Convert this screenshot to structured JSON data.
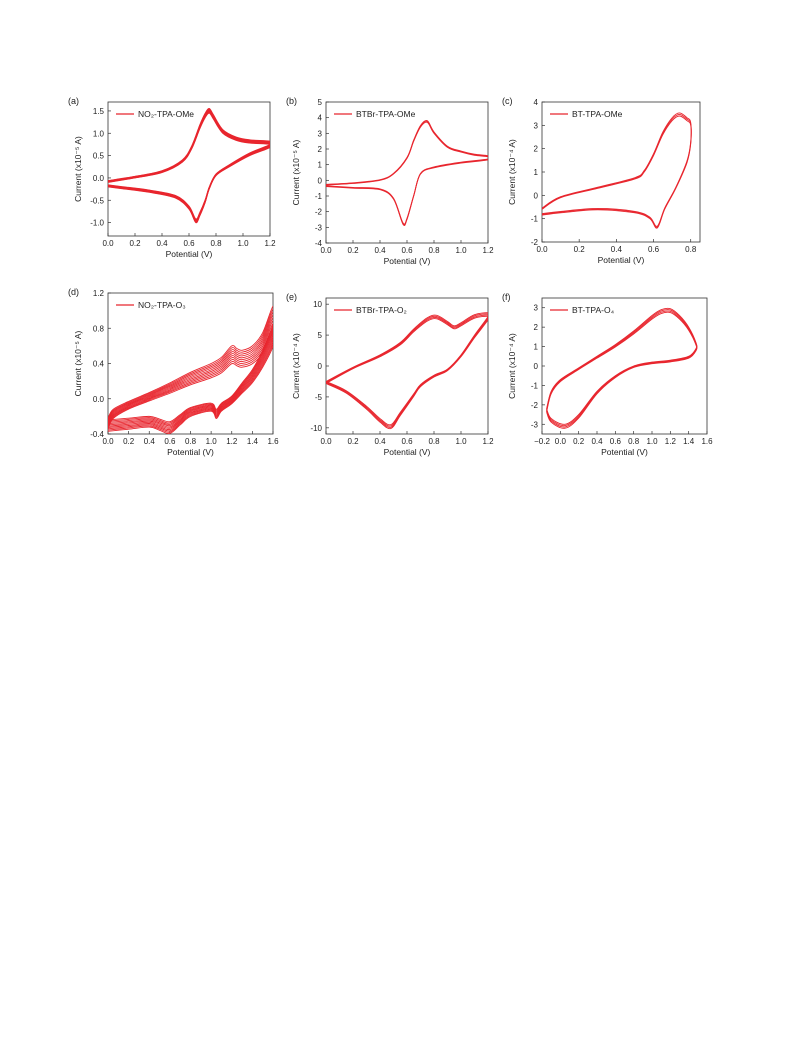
{
  "colors": {
    "curve": "#e8262e",
    "axis": "#333333"
  },
  "chart_data": [
    {
      "panel": "(a)",
      "type": "line",
      "legend": "NO₂-TPA-OMe",
      "xlabel": "Potential (V)",
      "ylabel": "Current (x10⁻⁵ A)",
      "xlim": [
        0.0,
        1.2
      ],
      "ylim": [
        -1.3,
        1.7
      ],
      "xticks": [
        "0.0",
        "0.2",
        "0.4",
        "0.6",
        "0.8",
        "1.0",
        "1.2"
      ],
      "yticks": [
        "-1.0",
        "-0.5",
        "0.0",
        "0.5",
        "1.0",
        "1.5"
      ],
      "xtick_values": [
        0,
        0.2,
        0.4,
        0.6,
        0.8,
        1.0,
        1.2
      ],
      "ytick_values": [
        -1.0,
        -0.5,
        0.0,
        0.5,
        1.0,
        1.5
      ],
      "cycles": 10,
      "cycle_offset": [
        0,
        0.008
      ],
      "series": [
        {
          "x": [
            0.0,
            0.2,
            0.4,
            0.55,
            0.62,
            0.68,
            0.72,
            0.75,
            0.78,
            0.85,
            0.95,
            1.05,
            1.2,
            1.2,
            1.05,
            0.9,
            0.8,
            0.75,
            0.72,
            0.68,
            0.65,
            0.6,
            0.5,
            0.3,
            0.1,
            0.0
          ],
          "y": [
            -0.1,
            0.0,
            0.12,
            0.35,
            0.65,
            1.1,
            1.35,
            1.45,
            1.32,
            1.0,
            0.84,
            0.78,
            0.75,
            0.68,
            0.5,
            0.25,
            0.05,
            -0.25,
            -0.55,
            -0.85,
            -1.0,
            -0.7,
            -0.45,
            -0.32,
            -0.24,
            -0.2
          ]
        }
      ]
    },
    {
      "panel": "(b)",
      "type": "line",
      "legend": "BTBr-TPA-OMe",
      "xlabel": "Potential (V)",
      "ylabel": "Current (x10⁻⁵ A)",
      "xlim": [
        0.0,
        1.2
      ],
      "ylim": [
        -4,
        5
      ],
      "xticks": [
        "0.0",
        "0.2",
        "0.4",
        "0.6",
        "0.8",
        "1.0",
        "1.2"
      ],
      "yticks": [
        "-4",
        "-3",
        "-2",
        "-1",
        "0",
        "1",
        "2",
        "3",
        "4",
        "5"
      ],
      "xtick_values": [
        0,
        0.2,
        0.4,
        0.6,
        0.8,
        1.0,
        1.2
      ],
      "ytick_values": [
        -4,
        -3,
        -2,
        -1,
        0,
        1,
        2,
        3,
        4,
        5
      ],
      "cycles": 3,
      "cycle_offset": [
        0,
        0.04
      ],
      "series": [
        {
          "x": [
            0.0,
            0.2,
            0.4,
            0.5,
            0.6,
            0.65,
            0.7,
            0.75,
            0.8,
            0.9,
            1.0,
            1.1,
            1.2,
            1.2,
            1.0,
            0.8,
            0.7,
            0.65,
            0.6,
            0.57,
            0.5,
            0.4,
            0.2,
            0.0
          ],
          "y": [
            -0.3,
            -0.2,
            0.0,
            0.4,
            1.4,
            2.5,
            3.4,
            3.7,
            3.0,
            2.1,
            1.8,
            1.6,
            1.5,
            1.3,
            1.1,
            0.8,
            0.4,
            -1.0,
            -2.5,
            -2.8,
            -1.2,
            -0.6,
            -0.5,
            -0.4
          ]
        }
      ]
    },
    {
      "panel": "(c)",
      "type": "line",
      "legend": "BT-TPA-OMe",
      "xlabel": "Potential (V)",
      "ylabel": "Current (x10⁻⁴ A)",
      "xlim": [
        0.0,
        0.85
      ],
      "ylim": [
        -2,
        4
      ],
      "xticks": [
        "0.0",
        "0.2",
        "0.4",
        "0.6",
        "0.8"
      ],
      "yticks": [
        "-2",
        "-1",
        "0",
        "1",
        "2",
        "3",
        "4"
      ],
      "xtick_values": [
        0,
        0.2,
        0.4,
        0.6,
        0.8
      ],
      "ytick_values": [
        -2,
        -1,
        0,
        1,
        2,
        3,
        4
      ],
      "cycles": 3,
      "cycle_offset": [
        0,
        0.04
      ],
      "series": [
        {
          "x": [
            0.0,
            0.1,
            0.3,
            0.5,
            0.55,
            0.6,
            0.65,
            0.7,
            0.74,
            0.78,
            0.8,
            0.8,
            0.78,
            0.72,
            0.66,
            0.62,
            0.58,
            0.5,
            0.3,
            0.1,
            0.0
          ],
          "y": [
            -0.6,
            -0.1,
            0.3,
            0.7,
            1.0,
            1.7,
            2.6,
            3.2,
            3.4,
            3.2,
            3.0,
            2.2,
            1.4,
            0.3,
            -0.6,
            -1.4,
            -1.0,
            -0.75,
            -0.62,
            -0.75,
            -0.85
          ]
        }
      ]
    },
    {
      "panel": "(d)",
      "type": "line",
      "legend": "NO₂-TPA-O₃",
      "xlabel": "Potential (V)",
      "ylabel": "Current (x10⁻⁵ A)",
      "xlim": [
        0.0,
        1.6
      ],
      "ylim": [
        -0.4,
        1.2
      ],
      "xticks": [
        "0.0",
        "0.2",
        "0.4",
        "0.6",
        "0.8",
        "1.0",
        "1.2",
        "1.4",
        "1.6"
      ],
      "yticks": [
        "-0.4",
        "0.0",
        "0.4",
        "0.8",
        "1.2"
      ],
      "xtick_values": [
        0,
        0.2,
        0.4,
        0.6,
        0.8,
        1.0,
        1.2,
        1.4,
        1.6
      ],
      "ytick_values": [
        -0.4,
        0.0,
        0.4,
        0.8,
        1.2
      ],
      "cycles": 10,
      "cycle_offset": [
        0,
        -0.018
      ],
      "series": [
        {
          "x": [
            0.0,
            0.05,
            0.2,
            0.4,
            0.6,
            0.8,
            1.0,
            1.1,
            1.2,
            1.25,
            1.3,
            1.4,
            1.5,
            1.6,
            1.6,
            1.5,
            1.4,
            1.3,
            1.2,
            1.1,
            1.05,
            1.0,
            0.8,
            0.7,
            0.6,
            0.5,
            0.4,
            0.2,
            0.0
          ],
          "y": [
            -0.22,
            -0.12,
            -0.03,
            0.07,
            0.18,
            0.3,
            0.4,
            0.47,
            0.6,
            0.57,
            0.55,
            0.6,
            0.75,
            1.05,
            0.85,
            0.55,
            0.33,
            0.18,
            0.03,
            -0.05,
            -0.12,
            -0.05,
            -0.1,
            -0.18,
            -0.26,
            -0.23,
            -0.2,
            -0.22,
            -0.24
          ]
        }
      ]
    },
    {
      "panel": "(e)",
      "type": "line",
      "legend": "BTBr-TPA-O₂",
      "xlabel": "Potential (V)",
      "ylabel": "Current (x10⁻⁴ A)",
      "xlim": [
        0.0,
        1.2
      ],
      "ylim": [
        -11,
        11
      ],
      "xticks": [
        "0.0",
        "0.2",
        "0.4",
        "0.6",
        "0.8",
        "1.0",
        "1.2"
      ],
      "yticks": [
        "-10",
        "-5",
        "0",
        "5",
        "10"
      ],
      "xtick_values": [
        0,
        0.2,
        0.4,
        0.6,
        0.8,
        1.0,
        1.2
      ],
      "ytick_values": [
        -10,
        -5,
        0,
        5,
        10
      ],
      "cycles": 4,
      "cycle_offset": [
        0,
        -0.15
      ],
      "series": [
        {
          "x": [
            0.0,
            0.2,
            0.4,
            0.55,
            0.65,
            0.75,
            0.82,
            0.9,
            0.95,
            1.0,
            1.1,
            1.2,
            1.2,
            1.1,
            1.0,
            0.9,
            0.8,
            0.7,
            0.65,
            0.55,
            0.48,
            0.4,
            0.3,
            0.15,
            0.0
          ],
          "y": [
            -2.5,
            -0.2,
            1.8,
            3.8,
            6.0,
            7.8,
            8.2,
            7.2,
            6.5,
            7.0,
            8.3,
            8.6,
            8.0,
            5.0,
            1.8,
            -0.5,
            -1.5,
            -3.0,
            -4.5,
            -7.5,
            -9.5,
            -8.5,
            -6.5,
            -4.0,
            -2.5
          ]
        }
      ]
    },
    {
      "panel": "(f)",
      "type": "line",
      "legend": "BT-TPA-O₄",
      "xlabel": "Potential (V)",
      "ylabel": "Current (x10⁻⁴ A)",
      "xlim": [
        -0.2,
        1.6
      ],
      "ylim": [
        -3.5,
        3.5
      ],
      "xticks": [
        "−0.2",
        "0.0",
        "0.2",
        "0.4",
        "0.6",
        "0.8",
        "1.0",
        "1.2",
        "1.4",
        "1.6"
      ],
      "yticks": [
        "-3",
        "-2",
        "-1",
        "0",
        "1",
        "2",
        "3"
      ],
      "xtick_values": [
        -0.2,
        0,
        0.2,
        0.4,
        0.6,
        0.8,
        1.0,
        1.2,
        1.4,
        1.6
      ],
      "ytick_values": [
        -3,
        -2,
        -1,
        0,
        1,
        2,
        3
      ],
      "cycles": 4,
      "cycle_offset": [
        0,
        -0.05
      ],
      "series": [
        {
          "x": [
            -0.15,
            -0.1,
            0.0,
            0.2,
            0.4,
            0.6,
            0.8,
            1.0,
            1.1,
            1.2,
            1.3,
            1.4,
            1.48,
            1.48,
            1.4,
            1.2,
            1.0,
            0.8,
            0.6,
            0.4,
            0.2,
            0.05,
            -0.1,
            -0.15
          ],
          "y": [
            -2.2,
            -1.3,
            -0.7,
            -0.1,
            0.5,
            1.1,
            1.8,
            2.6,
            2.9,
            2.95,
            2.6,
            2.0,
            1.2,
            0.9,
            0.5,
            0.3,
            0.2,
            0.0,
            -0.5,
            -1.3,
            -2.5,
            -3.0,
            -2.7,
            -2.2
          ]
        }
      ]
    }
  ]
}
